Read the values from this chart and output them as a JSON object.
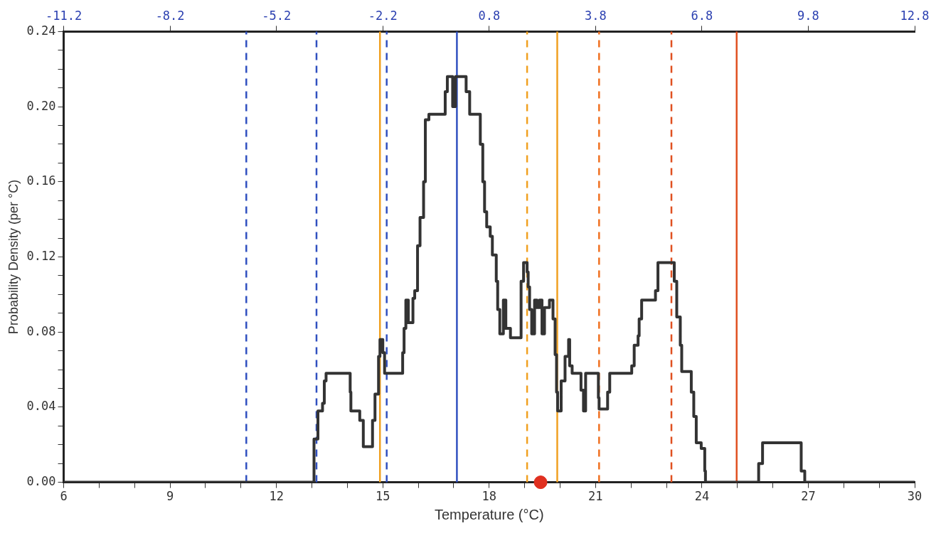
{
  "chart_data": {
    "type": "step",
    "xlabel": "Temperature (°C)",
    "ylabel": "Probability Density (per °C)",
    "xlim": [
      6,
      30
    ],
    "xticks": [
      6,
      {
        "value": 7,
        "label": null
      },
      {
        "value": 8,
        "label": null
      },
      9,
      {
        "value": 10,
        "label": null
      },
      {
        "value": 11,
        "label": null
      },
      12,
      {
        "value": 13,
        "label": null
      },
      {
        "value": 14,
        "label": null
      },
      15,
      {
        "value": 16,
        "label": null
      },
      {
        "value": 17,
        "label": null
      },
      18,
      {
        "value": 19,
        "label": null
      },
      {
        "value": 20,
        "label": null
      },
      21,
      {
        "value": 22,
        "label": null
      },
      {
        "value": 23,
        "label": null
      },
      24,
      {
        "value": 25,
        "label": null
      },
      {
        "value": 26,
        "label": null
      },
      27,
      {
        "value": 28,
        "label": null
      },
      {
        "value": 29,
        "label": null
      },
      30
    ],
    "x2lim": [
      -11.2,
      12.8
    ],
    "x2ticks": [
      -11.2,
      -8.2,
      -5.2,
      -2.2,
      0.8,
      3.8,
      6.8,
      9.8,
      12.8
    ],
    "ylim": [
      0,
      0.24
    ],
    "yticks": [
      {
        "value": 0,
        "label": "0.00"
      },
      {
        "value": 0.01,
        "label": null
      },
      {
        "value": 0.02,
        "label": null
      },
      {
        "value": 0.03,
        "label": null
      },
      {
        "value": 0.04,
        "label": "0.04"
      },
      {
        "value": 0.05,
        "label": null
      },
      {
        "value": 0.06,
        "label": null
      },
      {
        "value": 0.07,
        "label": null
      },
      {
        "value": 0.08,
        "label": "0.08"
      },
      {
        "value": 0.09,
        "label": null
      },
      {
        "value": 0.1,
        "label": null
      },
      {
        "value": 0.11,
        "label": null
      },
      {
        "value": 0.12,
        "label": "0.12"
      },
      {
        "value": 0.13,
        "label": null
      },
      {
        "value": 0.14,
        "label": null
      },
      {
        "value": 0.15,
        "label": null
      },
      {
        "value": 0.16,
        "label": "0.16"
      },
      {
        "value": 0.17,
        "label": null
      },
      {
        "value": 0.18,
        "label": null
      },
      {
        "value": 0.19,
        "label": null
      },
      {
        "value": 0.2,
        "label": "0.20"
      },
      {
        "value": 0.21,
        "label": null
      },
      {
        "value": 0.22,
        "label": null
      },
      {
        "value": 0.23,
        "label": null
      },
      {
        "value": 0.24,
        "label": "0.24"
      }
    ],
    "grid": false,
    "legend": false,
    "marker": "none",
    "line_style": "solid",
    "series": [
      {
        "color": "#333333",
        "x": [
          6,
          13.06,
          13.17,
          13.3,
          13.35,
          13.4,
          14.08,
          14.1,
          14.35,
          14.45,
          14.71,
          14.78,
          14.88,
          14.92,
          15.0,
          15.05,
          15.56,
          15.6,
          15.65,
          15.72,
          15.85,
          15.9,
          15.98,
          16.05,
          16.15,
          16.2,
          16.3,
          16.76,
          16.82,
          16.97,
          17.05,
          17.35,
          17.45,
          17.75,
          17.82,
          17.87,
          17.93,
          18.03,
          18.09,
          18.2,
          18.24,
          18.3,
          18.4,
          18.47,
          18.6,
          18.9,
          18.97,
          19.07,
          19.1,
          19.14,
          19.2,
          19.28,
          19.35,
          19.42,
          19.49,
          19.56,
          19.7,
          19.8,
          19.86,
          19.9,
          19.93,
          20.03,
          20.14,
          20.24,
          20.27,
          20.34,
          20.59,
          20.66,
          20.72,
          21.08,
          21.1,
          21.34,
          21.4,
          22.02,
          22.09,
          22.2,
          22.23,
          22.3,
          22.69,
          22.76,
          23.22,
          23.29,
          23.39,
          23.43,
          23.7,
          23.77,
          23.84,
          23.98,
          24.08,
          24.1,
          25.6,
          25.71,
          26.8,
          26.9,
          30
        ],
        "values": [
          0,
          0.023,
          0.038,
          0.042,
          0.054,
          0.058,
          0.048,
          0.038,
          0.033,
          0.019,
          0.033,
          0.047,
          0.067,
          0.076,
          0.069,
          0.058,
          0.069,
          0.082,
          0.097,
          0.085,
          0.098,
          0.102,
          0.126,
          0.141,
          0.16,
          0.193,
          0.196,
          0.208,
          0.216,
          0.2,
          0.216,
          0.208,
          0.196,
          0.18,
          0.16,
          0.144,
          0.136,
          0.131,
          0.121,
          0.107,
          0.092,
          0.079,
          0.097,
          0.082,
          0.077,
          0.107,
          0.117,
          0.112,
          0.104,
          0.092,
          0.079,
          0.097,
          0.093,
          0.097,
          0.079,
          0.093,
          0.097,
          0.087,
          0.068,
          0.048,
          0.038,
          0.054,
          0.067,
          0.076,
          0.062,
          0.058,
          0.049,
          0.038,
          0.058,
          0.045,
          0.039,
          0.048,
          0.058,
          0.062,
          0.073,
          0.078,
          0.087,
          0.097,
          0.102,
          0.117,
          0.107,
          0.088,
          0.073,
          0.059,
          0.048,
          0.035,
          0.021,
          0.018,
          0.006,
          0,
          0.01,
          0.021,
          0.006,
          0,
          0
        ]
      },
      {
        "type": "scatter",
        "color": "#e03020",
        "marker": "circle",
        "x": [
          19.45
        ],
        "values": [
          0
        ]
      }
    ],
    "ref_lines": [
      {
        "axis": "x",
        "value": 11.15,
        "color": "#3050c0",
        "line_style": "dashed"
      },
      {
        "axis": "x",
        "value": 13.13,
        "color": "#3050c0",
        "line_style": "dashed"
      },
      {
        "axis": "x",
        "value": 15.11,
        "color": "#3050c0",
        "line_style": "dashed"
      },
      {
        "axis": "x",
        "value": 14.92,
        "color": "#f0a020",
        "line_style": "solid"
      },
      {
        "axis": "x",
        "value": 17.09,
        "color": "#3050c0",
        "line_style": "solid"
      },
      {
        "axis": "x",
        "value": 19.07,
        "color": "#f0a020",
        "line_style": "dashed"
      },
      {
        "axis": "x",
        "value": 19.92,
        "color": "#f0a020",
        "line_style": "solid"
      },
      {
        "axis": "x",
        "value": 21.1,
        "color": "#f07020",
        "line_style": "dashed"
      },
      {
        "axis": "x",
        "value": 23.14,
        "color": "#e05020",
        "line_style": "dashed"
      },
      {
        "axis": "x",
        "value": 24.98,
        "color": "#e05020",
        "line_style": "solid"
      }
    ]
  }
}
